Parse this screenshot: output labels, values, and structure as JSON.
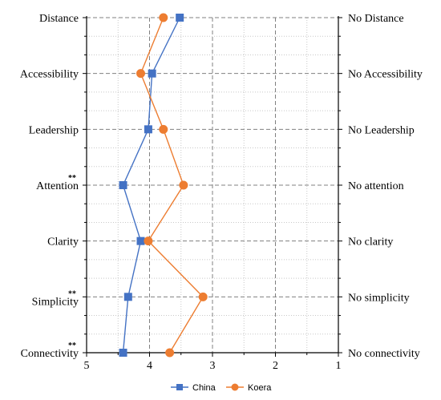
{
  "chart_data": {
    "type": "line",
    "orientation": "horizontal-value-axis",
    "title": "",
    "xlabel": "",
    "ylabel": "",
    "x_axis_reversed": true,
    "xlim": [
      5,
      1
    ],
    "x_ticks": [
      "5",
      "4",
      "3",
      "2",
      "1"
    ],
    "grid": "dashed",
    "legend_position": "bottom",
    "categories": [
      {
        "left": "Distance",
        "right": "No Distance",
        "sig": ""
      },
      {
        "left": "Accessibility",
        "right": "No Accessibility",
        "sig": ""
      },
      {
        "left": "Leadership",
        "right": "No Leadership",
        "sig": ""
      },
      {
        "left": "Attention",
        "right": "No attention",
        "sig": "**"
      },
      {
        "left": "Clarity",
        "right": "No clarity",
        "sig": ""
      },
      {
        "left": "Simplicity",
        "right": "No simplicity",
        "sig": "**"
      },
      {
        "left": "Connectivity",
        "right": "No connectivity",
        "sig": "**"
      }
    ],
    "series": [
      {
        "name": "China",
        "color": "#4472C4",
        "marker": "square",
        "values": [
          3.52,
          3.96,
          4.02,
          4.42,
          4.14,
          4.34,
          4.42
        ]
      },
      {
        "name": "Koera",
        "color": "#ED7D31",
        "marker": "circle",
        "values": [
          3.78,
          4.14,
          3.78,
          3.46,
          4.02,
          3.15,
          3.68
        ]
      }
    ]
  }
}
